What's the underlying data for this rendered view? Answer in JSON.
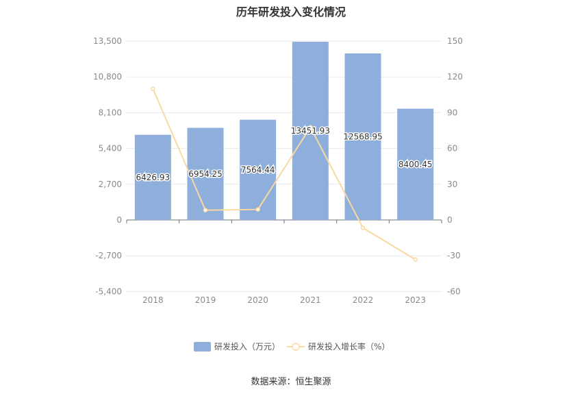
{
  "title": "历年研发投入变化情况",
  "source": "数据来源：恒生聚源",
  "chart_data": {
    "type": "bar",
    "categories": [
      "2018",
      "2019",
      "2020",
      "2021",
      "2022",
      "2023"
    ],
    "series": [
      {
        "name": "研发投入（万元）",
        "type": "bar",
        "axis": "left",
        "color": "#8eaedb",
        "values": [
          6426.93,
          6954.25,
          7564.44,
          13451.93,
          12568.95,
          8400.45
        ],
        "labels": [
          "6426.93",
          "6954.25",
          "7564.44",
          "13451.93",
          "12568.95",
          "8400.45"
        ]
      },
      {
        "name": "研发投入增长率（%）",
        "type": "line",
        "axis": "right",
        "color": "#fad9a1",
        "values": [
          110,
          8.2,
          8.8,
          77.8,
          -6.6,
          -33.2
        ]
      }
    ],
    "y_left": {
      "min": -5400,
      "max": 13500,
      "ticks": [
        13500,
        10800,
        8100,
        5400,
        2700,
        0,
        -2700,
        -5400
      ],
      "tick_labels": [
        "13,500",
        "10,800",
        "8,100",
        "5,400",
        "2,700",
        "0",
        "-2,700",
        "-5,400"
      ]
    },
    "y_right": {
      "min": -60,
      "max": 150,
      "ticks": [
        150,
        120,
        90,
        60,
        30,
        0,
        -30,
        -60
      ],
      "tick_labels": [
        "150",
        "120",
        "90",
        "60",
        "30",
        "0",
        "-30",
        "-60"
      ]
    },
    "grid": true,
    "legend_position": "bottom"
  }
}
